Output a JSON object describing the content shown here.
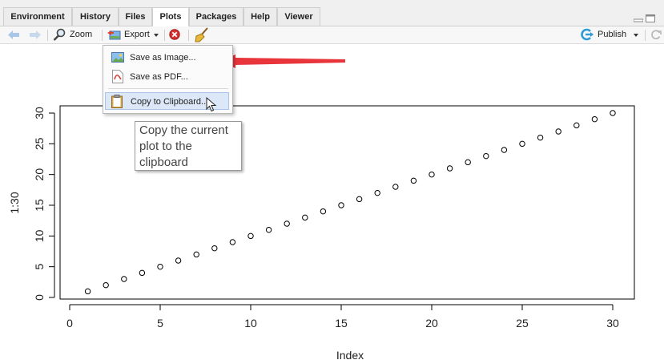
{
  "tabs": [
    {
      "label": "Environment",
      "active": false
    },
    {
      "label": "History",
      "active": false
    },
    {
      "label": "Files",
      "active": false
    },
    {
      "label": "Plots",
      "active": true
    },
    {
      "label": "Packages",
      "active": false
    },
    {
      "label": "Help",
      "active": false
    },
    {
      "label": "Viewer",
      "active": false
    }
  ],
  "toolbar": {
    "zoom_label": "Zoom",
    "export_label": "Export",
    "publish_label": "Publish"
  },
  "export_menu": {
    "items": [
      {
        "label": "Save as Image...",
        "icon": "image-icon"
      },
      {
        "label": "Save as PDF...",
        "icon": "pdf-icon"
      },
      {
        "label": "Copy to Clipboard...",
        "icon": "clipboard-icon",
        "highlighted": true
      }
    ]
  },
  "tooltip": {
    "lines": [
      "Copy the current",
      "plot to the",
      "clipboard"
    ]
  },
  "annotation": {
    "arrow_color": "#e8353b"
  },
  "chart_data": {
    "type": "scatter",
    "x": [
      1,
      2,
      3,
      4,
      5,
      6,
      7,
      8,
      9,
      10,
      11,
      12,
      13,
      14,
      15,
      16,
      17,
      18,
      19,
      20,
      21,
      22,
      23,
      24,
      25,
      26,
      27,
      28,
      29,
      30
    ],
    "y": [
      1,
      2,
      3,
      4,
      5,
      6,
      7,
      8,
      9,
      10,
      11,
      12,
      13,
      14,
      15,
      16,
      17,
      18,
      19,
      20,
      21,
      22,
      23,
      24,
      25,
      26,
      27,
      28,
      29,
      30
    ],
    "xlabel": "Index",
    "ylabel": "1:30",
    "xlim": [
      0,
      30
    ],
    "ylim": [
      0,
      30
    ],
    "xticks": [
      0,
      5,
      10,
      15,
      20,
      25,
      30
    ],
    "yticks": [
      0,
      5,
      10,
      15,
      20,
      25,
      30
    ],
    "marker": "open-circle",
    "grid": false
  }
}
